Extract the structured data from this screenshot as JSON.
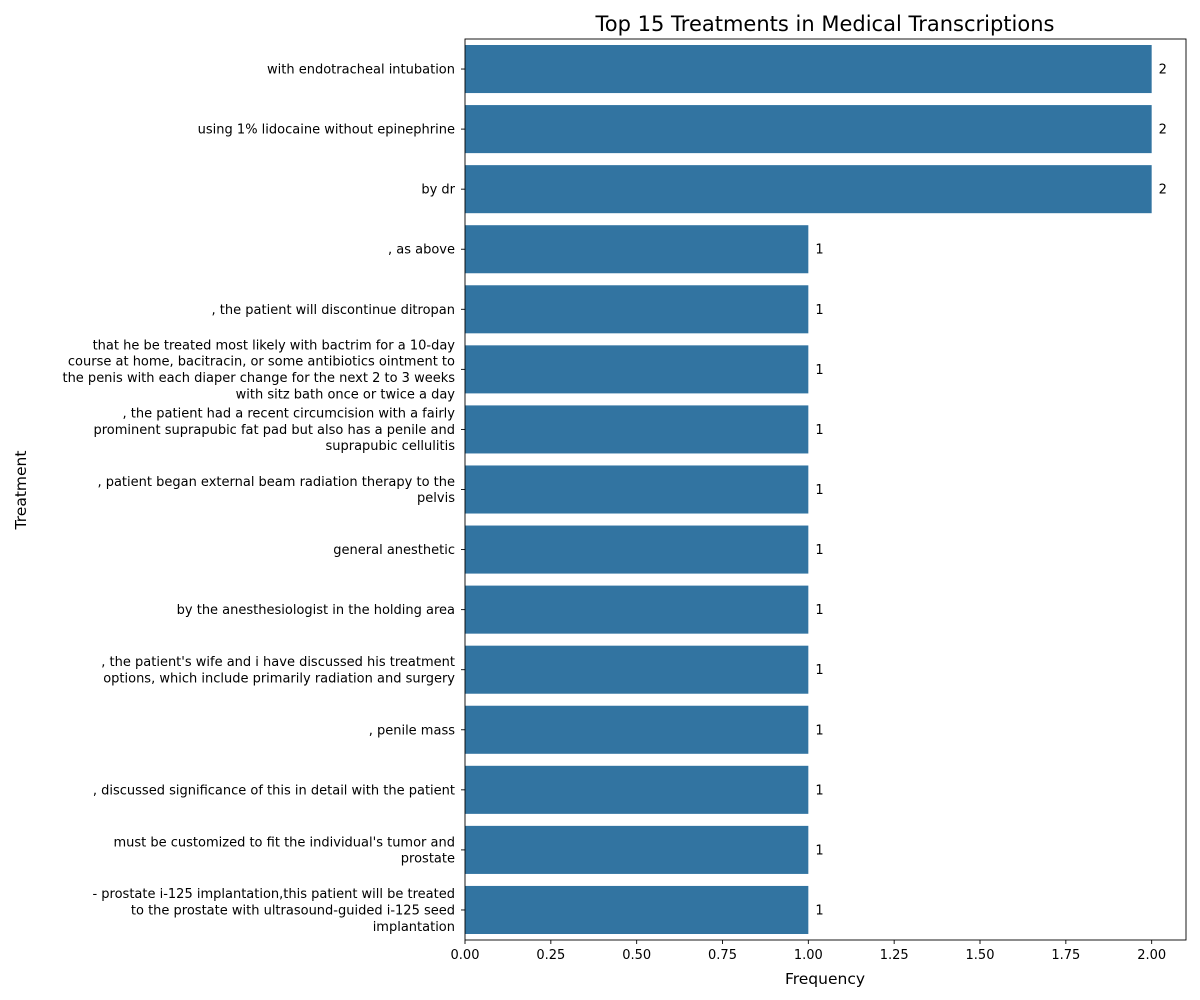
{
  "chart_data": {
    "type": "bar",
    "orientation": "horizontal",
    "title": "Top 15 Treatments in Medical Transcriptions",
    "xlabel": "Frequency",
    "ylabel": "Treatment",
    "xlim": [
      0,
      2.1
    ],
    "x_ticks": [
      "0.00",
      "0.25",
      "0.50",
      "0.75",
      "1.00",
      "1.25",
      "1.50",
      "1.75",
      "2.00"
    ],
    "grid": false,
    "bar_color": "#3274a1",
    "categories": [
      [
        "with endotracheal intubation"
      ],
      [
        "using 1% lidocaine without epinephrine"
      ],
      [
        "by dr"
      ],
      [
        ", as above"
      ],
      [
        ", the patient will discontinue ditropan"
      ],
      [
        "that he be treated most likely with bactrim for a 10-day",
        "course at home, bacitracin, or some antibiotics ointment to",
        "the penis with each diaper change for the next 2 to 3 weeks",
        "with sitz bath once or twice a day"
      ],
      [
        ", the patient had a recent circumcision with a fairly",
        "prominent suprapubic fat pad but also has a penile and",
        "suprapubic cellulitis"
      ],
      [
        ", patient began external beam radiation therapy to the",
        "pelvis"
      ],
      [
        "general anesthetic"
      ],
      [
        "by the anesthesiologist in the holding area"
      ],
      [
        ", the patient's wife and i have discussed his treatment",
        "options, which include primarily radiation and surgery"
      ],
      [
        ", penile mass"
      ],
      [
        ", discussed significance of this in detail with the patient"
      ],
      [
        "must be customized to fit the individual's tumor and",
        "prostate"
      ],
      [
        "- prostate i-125 implantation,this patient will be treated",
        "to the prostate with ultrasound-guided i-125 seed",
        "implantation"
      ]
    ],
    "values": [
      2,
      2,
      2,
      1,
      1,
      1,
      1,
      1,
      1,
      1,
      1,
      1,
      1,
      1,
      1
    ],
    "value_labels": [
      "2",
      "2",
      "2",
      "1",
      "1",
      "1",
      "1",
      "1",
      "1",
      "1",
      "1",
      "1",
      "1",
      "1",
      "1"
    ]
  }
}
